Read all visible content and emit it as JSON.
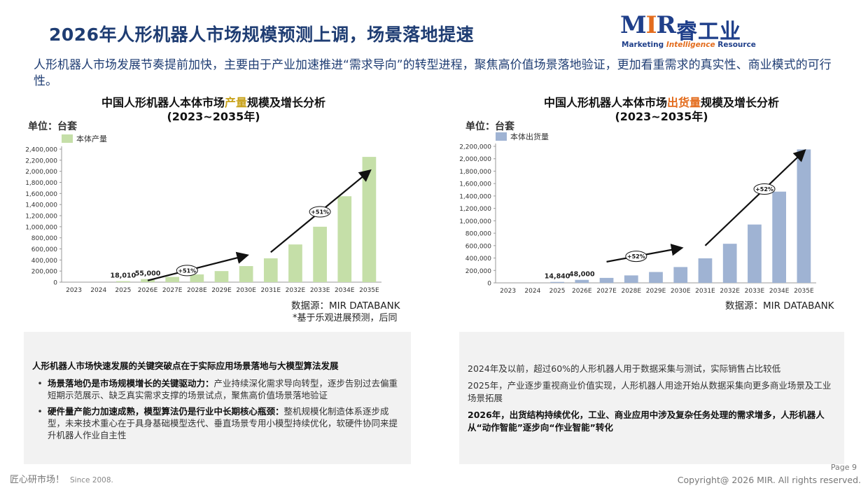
{
  "header": {
    "title": "2026年人形机器人市场规模预测上调，场景落地提速",
    "logo": {
      "mark_m": "M",
      "mark_i": "I",
      "mark_r": "R",
      "cn": "睿工业",
      "sub_1": "Marketing",
      "sub_2": "Intelligence",
      "sub_3": "Resource"
    }
  },
  "intro": "人形机器人市场发展节奏提前加快，主要由于产业加速推进“需求导向”的转型进程，聚焦高价值场景落地验证，更加看重需求的真实性、商业模式的可行性。",
  "charts": {
    "production": {
      "title_a": "中国人形机器人本体市场",
      "title_hl": "产量",
      "title_b": "规模及增长分析",
      "title_2": "(2023~2035年)",
      "unit": "单位：台套",
      "source": "数据源：MIR DATABANK",
      "note": "*基于乐观进展预测，后同"
    },
    "shipment": {
      "title_a": "中国人形机器人本体市场",
      "title_hl": "出货量",
      "title_b": "规模及增长分析",
      "title_2": "(2023~2035年)",
      "unit": "单位：台套",
      "source": "数据源：MIR DATABANK"
    }
  },
  "chart_data": [
    {
      "type": "bar",
      "title": "中国人形机器人本体市场产量规模及增长分析 (2023~2035年)",
      "ylabel": "单位：台套",
      "categories": [
        "2023",
        "2024",
        "2025",
        "2026E",
        "2027E",
        "2028E",
        "2029E",
        "2030E",
        "2031E",
        "2032E",
        "2033E",
        "2034E",
        "2035E"
      ],
      "series": [
        {
          "name": "本体产量",
          "values": [
            0,
            0,
            18010,
            55000,
            95000,
            140000,
            200000,
            290000,
            430000,
            680000,
            1000000,
            1550000,
            2260000
          ]
        }
      ],
      "bar_labels": [
        "",
        "",
        "18,010",
        "55,000",
        "",
        "",
        "",
        "",
        "",
        "",
        "",
        "",
        ""
      ],
      "yticks": [
        "0",
        "200,000",
        "400,000",
        "600,000",
        "800,000",
        "1,000,000",
        "1,200,000",
        "1,400,000",
        "1,600,000",
        "1,800,000",
        "2,000,000",
        "2,200,000",
        "2,400,000"
      ],
      "ylim": [
        0,
        2400000
      ],
      "color": "#c5dfa8",
      "annotations": [
        "+51%",
        "+51%"
      ],
      "grid": false,
      "legend": "top-left"
    },
    {
      "type": "bar",
      "title": "中国人形机器人本体市场出货量规模及增长分析 (2023~2035年)",
      "ylabel": "单位：台套",
      "categories": [
        "2023",
        "2024",
        "2025",
        "2026E",
        "2027E",
        "2028E",
        "2029E",
        "2030E",
        "2031E",
        "2032E",
        "2033E",
        "2034E",
        "2035E"
      ],
      "series": [
        {
          "name": "本体出货量",
          "values": [
            0,
            0,
            14840,
            48000,
            80000,
            120000,
            175000,
            255000,
            395000,
            630000,
            940000,
            1470000,
            2150000
          ]
        }
      ],
      "bar_labels": [
        "",
        "",
        "14,840",
        "48,000",
        "",
        "",
        "",
        "",
        "",
        "",
        "",
        "",
        ""
      ],
      "yticks": [
        "0",
        "200,000",
        "400,000",
        "600,000",
        "800,000",
        "1,000,000",
        "1,200,000",
        "1,400,000",
        "1,600,000",
        "1,800,000",
        "2,000,000",
        "2,200,000"
      ],
      "ylim": [
        0,
        2200000
      ],
      "color": "#9fb3d3",
      "annotations": [
        "+52%",
        "+52%"
      ],
      "grid": false,
      "legend": "top-left"
    }
  ],
  "left_box": {
    "heading": "人形机器人市场快速发展的关键突破点在于实际应用场景落地与大模型算法发展",
    "bullets": [
      {
        "bold": "场景落地仍是市场规模增长的关键驱动力：",
        "text": "产业持续深化需求导向转型，逐步告别过去偏重短期示范展示、缺乏真实需求支撑的场景试点，聚焦高价值场景落地验证"
      },
      {
        "bold": "硬件量产能力加速成熟，模型算法仍是行业中长期核心瓶颈：",
        "text": "整机规模化制造体系逐步成型，未来技术重心在于具身基础模型迭代、垂直场景专用小模型持续优化，软硬件协同来提升机器人作业自主性"
      }
    ]
  },
  "right_box": {
    "p1": "2024年及以前，超过60%的人形机器人用于数据采集与测试，实际销售占比较低",
    "p2": "2025年，产业逐步重视商业价值实现，人形机器人用途开始从数据采集向更多商业场景及工业场景拓展",
    "p3": "2026年，出货结构持续优化，工业、商业应用中涉及复杂任务处理的需求增多，人形机器人从“动作智能”逐步向“作业智能”转化"
  },
  "footer": {
    "slogan": "匠心研市场！",
    "since": "Since 2008.",
    "page": "Page 9",
    "copyright": "Copyright@ 2026 MIR. All rights reserved."
  }
}
